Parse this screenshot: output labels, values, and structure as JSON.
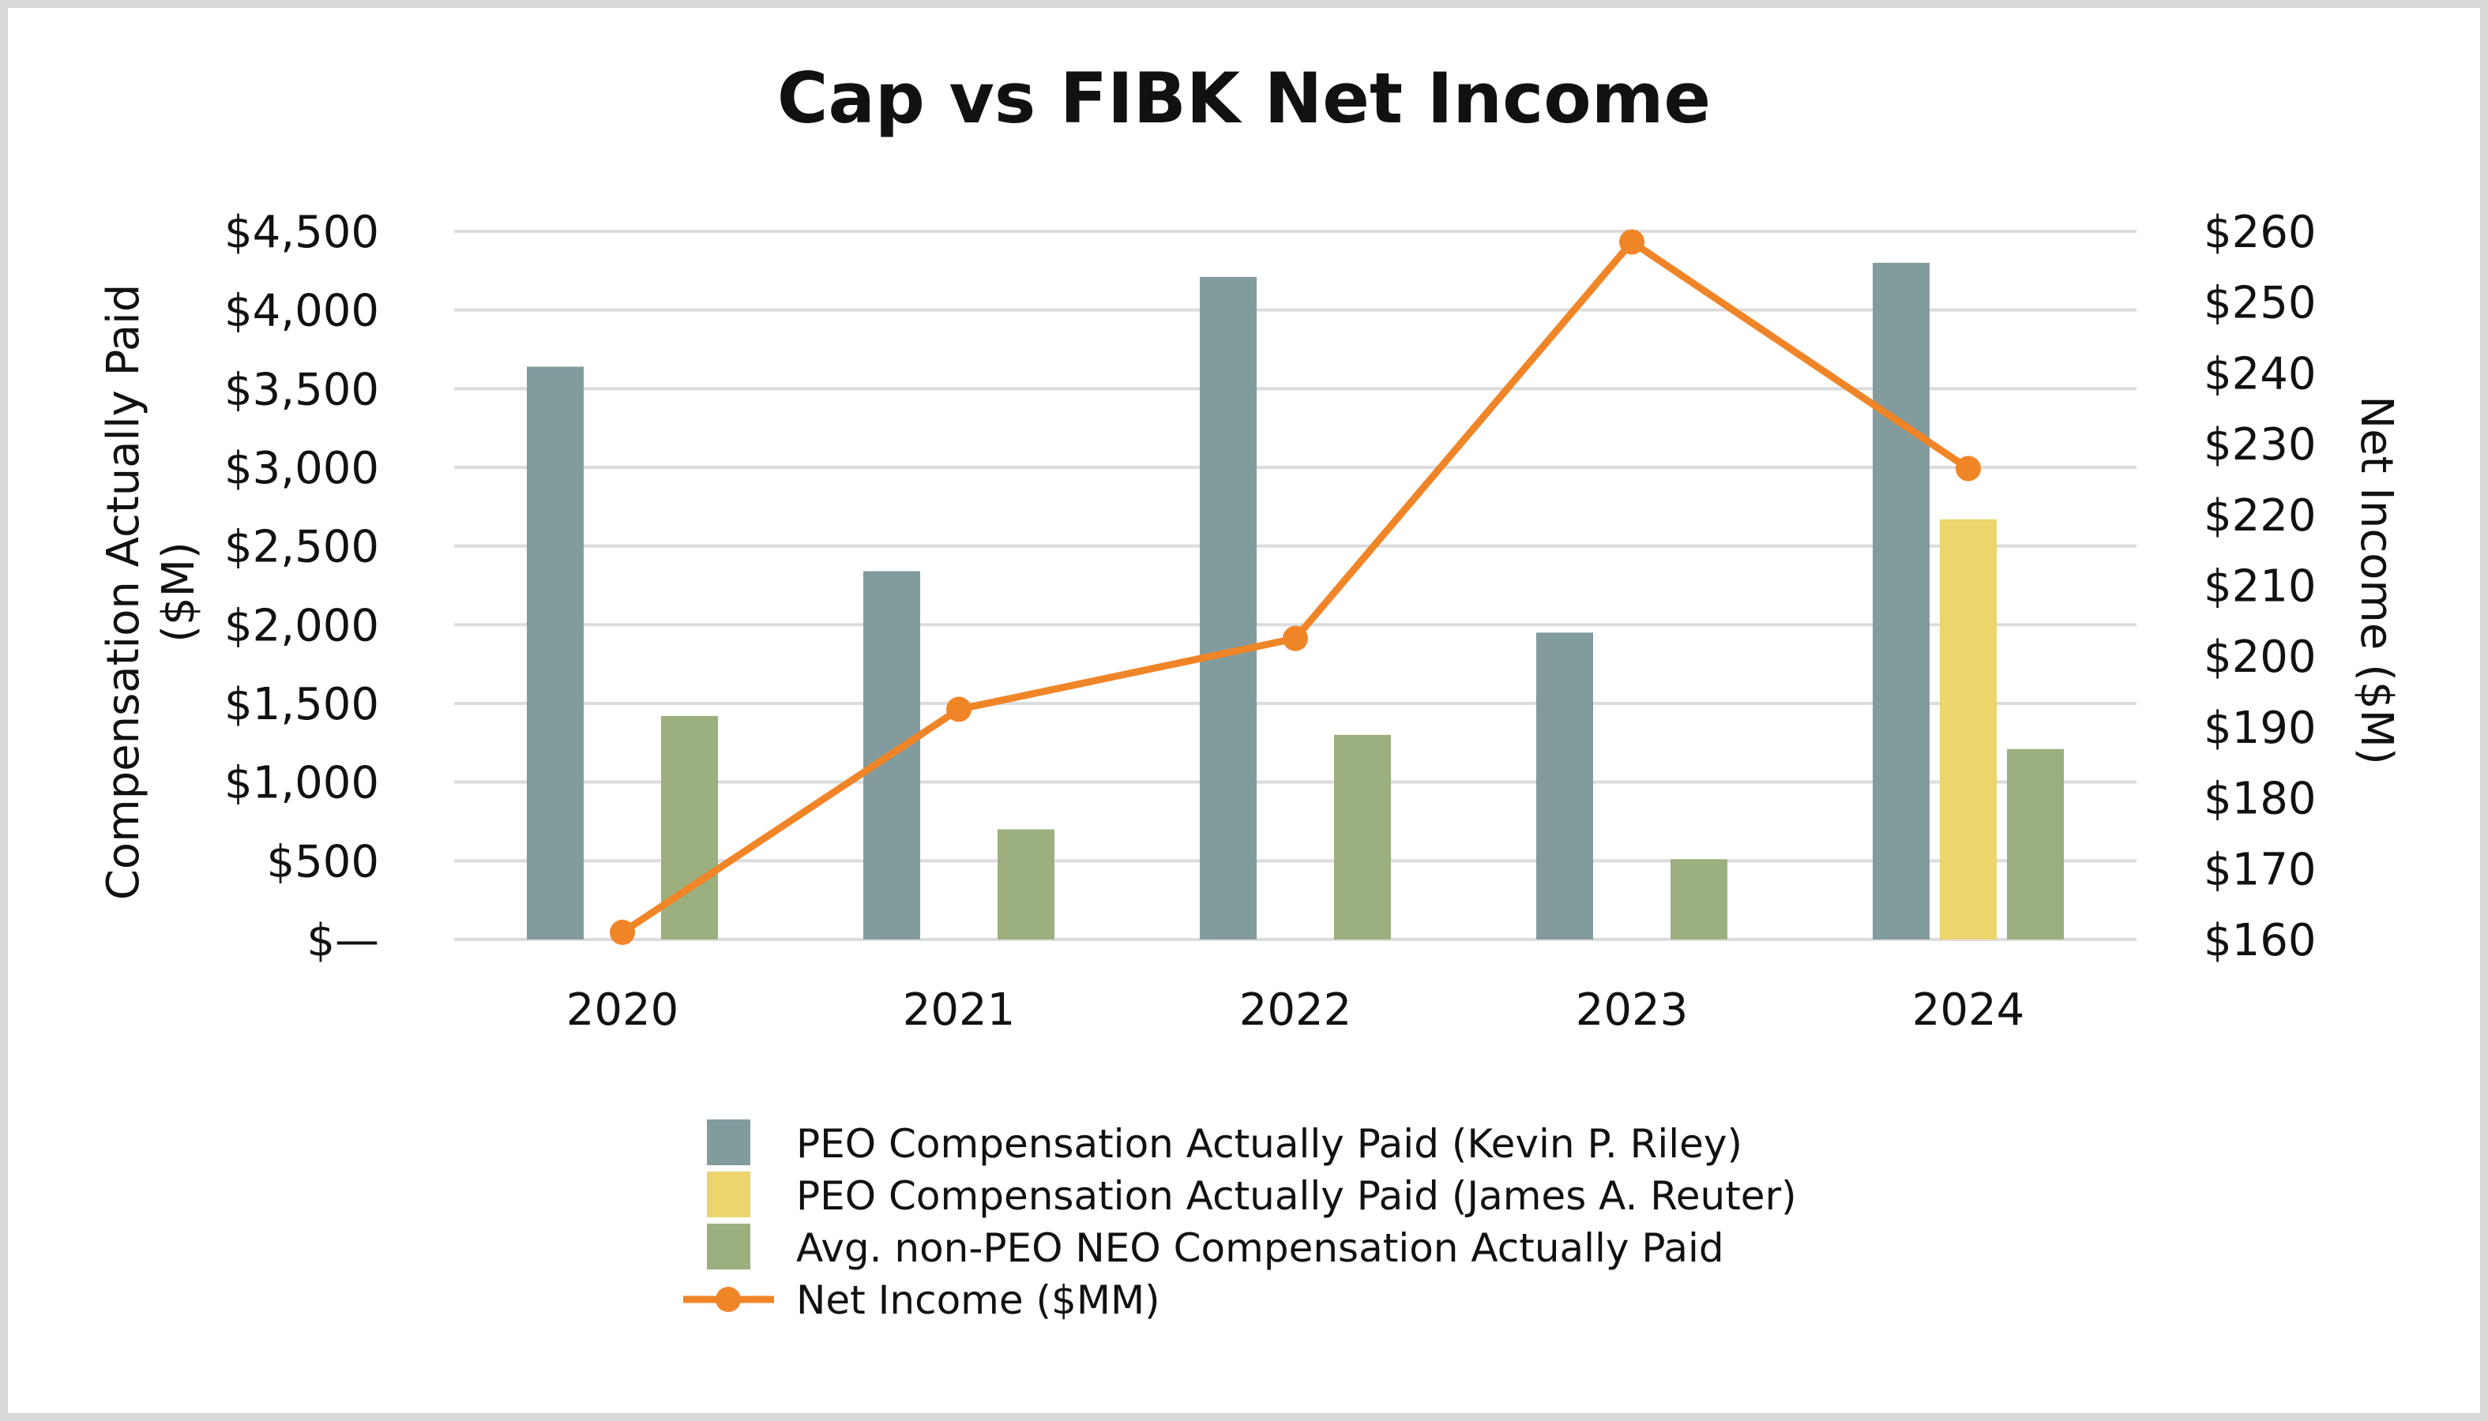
{
  "chart_data": {
    "type": "bar",
    "title": "Cap vs FIBK Net Income",
    "categories": [
      "2020",
      "2021",
      "2022",
      "2023",
      "2024"
    ],
    "y_left": {
      "label_line1": "Compensation Actually Paid",
      "label_line2": "($M)",
      "ylim": [
        0,
        4500
      ],
      "ticks": [
        0,
        500,
        1000,
        1500,
        2000,
        2500,
        3000,
        3500,
        4000,
        4500
      ],
      "tick_labels": [
        "$—",
        "$500",
        "$1,000",
        "$1,500",
        "$2,000",
        "$2,500",
        "$3,000",
        "$3,500",
        "$4,000",
        "$4,500"
      ]
    },
    "y_right": {
      "label": "Net Income ($M)",
      "ylim": [
        160,
        260
      ],
      "ticks": [
        160,
        170,
        180,
        190,
        200,
        210,
        220,
        230,
        240,
        250,
        260
      ],
      "tick_labels": [
        "$160",
        "$170",
        "$180",
        "$190",
        "$200",
        "$210",
        "$220",
        "$230",
        "$240",
        "$250",
        "$260"
      ]
    },
    "grid": true,
    "legend_position": "bottom",
    "series": [
      {
        "name": "PEO Compensation Actually Paid (Kevin P. Riley)",
        "kind": "bar",
        "axis": "left",
        "color": "#829b9d",
        "values": [
          3640,
          2340,
          4210,
          1950,
          4300
        ]
      },
      {
        "name": "PEO Compensation Actually Paid (James A. Reuter)",
        "kind": "bar",
        "axis": "left",
        "color": "#ebd56c",
        "values": [
          null,
          null,
          null,
          null,
          2670
        ]
      },
      {
        "name": "Avg. non-PEO NEO Compensation Actually Paid",
        "kind": "bar",
        "axis": "left",
        "color": "#9caf7e",
        "values": [
          1420,
          700,
          1300,
          510,
          1210
        ]
      },
      {
        "name": "Net Income ($MM)",
        "kind": "line",
        "axis": "right",
        "color": "#f08528",
        "values": [
          161,
          192.5,
          202.5,
          258.5,
          226.5
        ]
      }
    ]
  }
}
